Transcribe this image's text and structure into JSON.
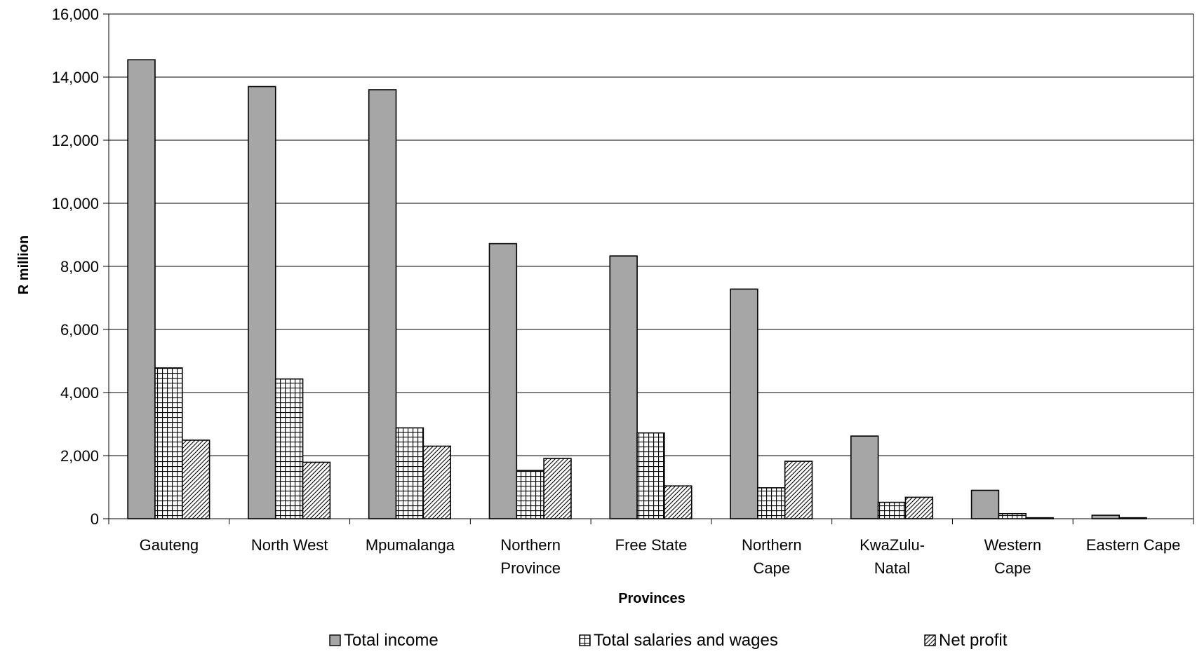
{
  "chart_data": {
    "type": "bar",
    "title": "",
    "xlabel": "Provinces",
    "ylabel": "R million",
    "ylim": [
      0,
      16000
    ],
    "yticks": [
      0,
      2000,
      4000,
      6000,
      8000,
      10000,
      12000,
      14000,
      16000
    ],
    "ytick_labels": [
      "0",
      "2,000",
      "4,000",
      "6,000",
      "8,000",
      "10,000",
      "12,000",
      "14,000",
      "16,000"
    ],
    "grid": "horizontal",
    "legend_position": "bottom",
    "categories": [
      [
        "Gauteng"
      ],
      [
        "North West"
      ],
      [
        "Mpumalanga"
      ],
      [
        "Northern",
        "Province"
      ],
      [
        "Free State"
      ],
      [
        "Northern",
        "Cape"
      ],
      [
        "KwaZulu-",
        "Natal"
      ],
      [
        "Western",
        "Cape"
      ],
      [
        "Eastern Cape"
      ]
    ],
    "series": [
      {
        "name": "Total income",
        "pattern": "solid-grey",
        "color": "#a6a6a6",
        "values": [
          14550,
          13700,
          13600,
          8720,
          8330,
          7280,
          2620,
          900,
          110
        ]
      },
      {
        "name": "Total salaries and wages",
        "pattern": "grid",
        "color": "#ffffff",
        "values": [
          4780,
          4430,
          2880,
          1530,
          2720,
          980,
          520,
          160,
          30
        ]
      },
      {
        "name": "Net profit",
        "pattern": "diagonal-hatch",
        "color": "#ffffff",
        "values": [
          2490,
          1790,
          2300,
          1910,
          1040,
          1820,
          680,
          30,
          0
        ]
      }
    ]
  }
}
